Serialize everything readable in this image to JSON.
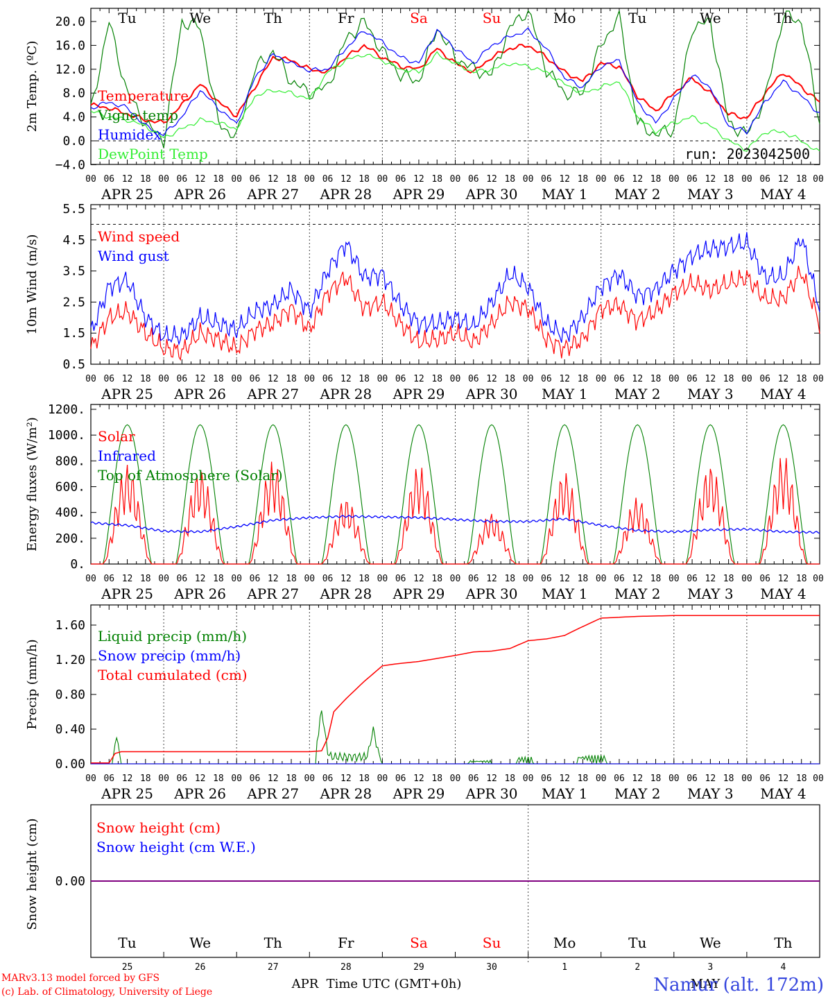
{
  "chart_data": [
    {
      "type": "line",
      "ylabel": "2m Temp. (ºC)",
      "yticks": [
        "20.0",
        "16.0",
        "12.0",
        "8.0",
        "4.0",
        "0.0",
        "−4.0"
      ],
      "ylim": [
        -4,
        22
      ],
      "weekdays": [
        "Tu",
        "We",
        "Th",
        "Fr",
        "Sa",
        "Su",
        "Mo",
        "Tu",
        "We",
        "Th"
      ],
      "weekday_colors": [
        "black",
        "black",
        "black",
        "black",
        "red",
        "red",
        "black",
        "black",
        "black",
        "black"
      ],
      "x": [
        0,
        6,
        12,
        18,
        24,
        30,
        36,
        42,
        48,
        54,
        60,
        66,
        72,
        78,
        84,
        90,
        96,
        102,
        108,
        114,
        120,
        126,
        132,
        138,
        144,
        150,
        156,
        162,
        168,
        174,
        180,
        186,
        192,
        198,
        204,
        210,
        216,
        222,
        228,
        234,
        240
      ],
      "series": [
        {
          "name": "Temperature",
          "color": "#ff0000",
          "values": [
            6,
            5.5,
            4.5,
            3.5,
            3,
            6,
            9.5,
            6.5,
            4.2,
            9,
            14,
            13.5,
            12,
            11.5,
            14,
            16,
            14,
            12.5,
            12,
            15.5,
            13,
            11.5,
            14,
            15.5,
            16,
            14,
            11.5,
            10,
            13,
            12.5,
            7.5,
            5,
            8,
            10.5,
            8,
            4.5,
            3.8,
            8,
            11.5,
            9,
            6.5
          ]
        },
        {
          "name": "Vigne temp",
          "color": "#008000",
          "values": [
            5,
            20,
            8,
            3,
            0,
            20,
            19,
            3,
            0.5,
            12,
            15,
            10,
            8,
            9,
            17,
            20,
            15,
            11,
            10,
            19,
            14,
            12,
            11,
            19,
            22,
            12,
            8,
            8,
            16,
            21,
            3,
            1,
            2,
            19,
            20,
            3,
            1,
            7,
            21,
            20,
            3
          ]
        },
        {
          "name": "Humidex",
          "color": "#0000ff",
          "values": [
            5.5,
            6.5,
            5.5,
            2.5,
            1,
            4,
            8.5,
            5.5,
            2.8,
            10.5,
            14.5,
            13,
            11.8,
            12,
            15.5,
            18.5,
            16.5,
            14,
            13,
            18.5,
            15.5,
            13,
            16,
            17.5,
            18.5,
            15.5,
            10.5,
            9,
            12.5,
            13.5,
            6.5,
            3,
            7,
            11,
            9,
            2.5,
            1.5,
            6.5,
            10,
            7.5,
            4.5
          ]
        },
        {
          "name": "DewPoint Temp",
          "color": "#33ee33",
          "values": [
            5,
            4,
            3.5,
            2.5,
            0.5,
            2,
            3.5,
            3,
            2,
            7.5,
            8.5,
            8,
            7,
            11.5,
            13.5,
            14.5,
            13.5,
            12,
            11.5,
            14.5,
            13,
            11.5,
            12,
            13,
            12.5,
            11.5,
            9.5,
            8,
            9,
            10,
            4,
            1.5,
            3,
            4,
            2.5,
            0,
            -1.5,
            1.5,
            1.5,
            0,
            -2
          ]
        }
      ],
      "annotation": "run: 2023042500"
    },
    {
      "type": "line",
      "ylabel": "10m Wind (m/s)",
      "yticks": [
        "5.5",
        "4.5",
        "3.5",
        "2.5",
        "1.5",
        "0.5"
      ],
      "ylim": [
        0.5,
        5.5
      ],
      "x": [
        0,
        6,
        12,
        18,
        24,
        30,
        36,
        42,
        48,
        54,
        60,
        66,
        72,
        78,
        84,
        90,
        96,
        102,
        108,
        114,
        120,
        126,
        132,
        138,
        144,
        150,
        156,
        162,
        168,
        174,
        180,
        186,
        192,
        198,
        204,
        210,
        216,
        222,
        228,
        234,
        240
      ],
      "series": [
        {
          "name": "Wind speed",
          "color": "#ff0000",
          "values": [
            1,
            2,
            2.2,
            1.5,
            1,
            0.9,
            1.5,
            1.3,
            1,
            1.6,
            1.8,
            2.3,
            1.6,
            2.8,
            3.3,
            2.3,
            2.5,
            1.8,
            1.2,
            1.3,
            1.5,
            1.2,
            1.8,
            2.5,
            2.3,
            1.3,
            1,
            1.3,
            2.3,
            2.4,
            1.9,
            2.2,
            2.8,
            3.1,
            2.9,
            3.1,
            3.3,
            2.6,
            2.6,
            3.5,
            1.8
          ]
        },
        {
          "name": "Wind gust",
          "color": "#0000ff",
          "values": [
            1.5,
            3,
            3.2,
            2,
            1.4,
            1.4,
            2,
            1.8,
            1.6,
            2.2,
            2.4,
            2.9,
            2.2,
            3.5,
            4.4,
            3.3,
            3.4,
            2.4,
            1.8,
            1.8,
            2,
            1.7,
            2.5,
            3.4,
            3,
            1.8,
            1.4,
            2,
            3,
            3.4,
            2.7,
            2.9,
            3.5,
            4,
            4.2,
            4.3,
            4.4,
            3.3,
            3.3,
            4.6,
            2.3
          ]
        }
      ]
    },
    {
      "type": "line",
      "ylabel": "Energy fluxes (W/m²)",
      "yticks": [
        "1200.",
        "1000.",
        "800.",
        "600.",
        "400.",
        "200.",
        "0."
      ],
      "ylim": [
        0,
        1200
      ],
      "solar_peaks": [
        780,
        740,
        800,
        520,
        770,
        400,
        720,
        520,
        780,
        850
      ],
      "toa_peak": 1080,
      "infrared": [
        320,
        300,
        255,
        250,
        290,
        340,
        360,
        370,
        365,
        360,
        345,
        330,
        330,
        350,
        300,
        260,
        250,
        265,
        270,
        250,
        245
      ],
      "series": [
        {
          "name": "Solar",
          "color": "#ff0000"
        },
        {
          "name": "Infrared",
          "color": "#0000ff"
        },
        {
          "name": "Top of Atmosphere (Solar)",
          "color": "#008000"
        }
      ]
    },
    {
      "type": "line",
      "ylabel": "Precip (mm/h)",
      "yticks": [
        "1.60",
        "1.20",
        "0.80",
        "0.40",
        "0.00"
      ],
      "ylim": [
        0,
        1.8
      ],
      "x": [
        0,
        6,
        8,
        10,
        12,
        24,
        48,
        72,
        76,
        78,
        80,
        84,
        90,
        96,
        100,
        108,
        120,
        126,
        132,
        138,
        144,
        150,
        156,
        160,
        168,
        180,
        192,
        216,
        240
      ],
      "series": [
        {
          "name": "Liquid precip (mm/h)",
          "color": "#008000"
        },
        {
          "name": "Snow precip (mm/h)",
          "color": "#0000ff"
        },
        {
          "name": "Total cumulated (cm)",
          "color": "#ff0000",
          "values": [
            0.01,
            0.01,
            0.12,
            0.14,
            0.14,
            0.14,
            0.14,
            0.14,
            0.15,
            0.3,
            0.6,
            0.75,
            0.95,
            1.13,
            1.15,
            1.18,
            1.25,
            1.29,
            1.3,
            1.33,
            1.42,
            1.44,
            1.48,
            1.55,
            1.68,
            1.7,
            1.71,
            1.71,
            1.71
          ]
        }
      ]
    },
    {
      "type": "line",
      "ylabel": "Snow height (cm)",
      "yticks": [
        "0.00"
      ],
      "series": [
        {
          "name": "Snow height (cm)",
          "color": "#ff0000",
          "values": [
            0,
            0
          ]
        },
        {
          "name": "Snow height (cm W.E.)",
          "color": "#0000ff",
          "values": [
            0,
            0
          ]
        }
      ]
    }
  ],
  "x_axis": {
    "hour_labels": [
      "00",
      "06",
      "12",
      "18"
    ],
    "last_hour_label": "00",
    "dates": [
      "APR 25",
      "APR 26",
      "APR 27",
      "APR 28",
      "APR 29",
      "APR 30",
      "MAY  1",
      "MAY  2",
      "MAY  3",
      "MAY  4"
    ],
    "bottom_days": [
      "Tu",
      "We",
      "Th",
      "Fr",
      "Sa",
      "Su",
      "Mo",
      "Tu",
      "We",
      "Th"
    ],
    "bottom_day_colors": [
      "black",
      "black",
      "black",
      "black",
      "red",
      "red",
      "black",
      "black",
      "black",
      "black"
    ],
    "bottom_numbers": [
      "25",
      "26",
      "27",
      "28",
      "29",
      "30",
      "1",
      "2",
      "3",
      "4"
    ],
    "month_left": "APR",
    "month_right": "MAY",
    "xlabel": "Time UTC (GMT+0h)"
  },
  "footer": {
    "credit_line1": "MARv3.13 model forced by GFS",
    "credit_line2": "(c) Lab. of Climatology, University of Liege",
    "station": "Namur (alt. 172m)"
  }
}
